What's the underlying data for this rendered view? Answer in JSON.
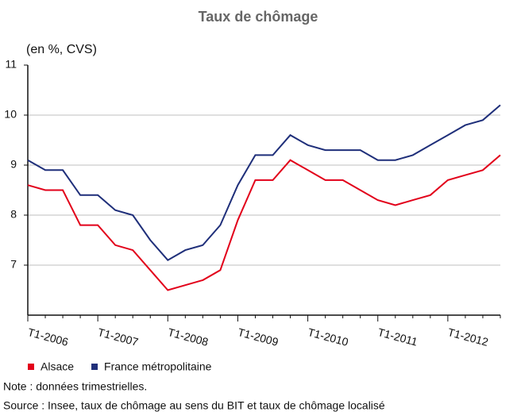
{
  "chart_data": {
    "type": "line",
    "title": "Taux de chômage",
    "y_label": "(en %, CVS)",
    "categories": [
      "T1-2006",
      null,
      null,
      null,
      "T1-2007",
      null,
      null,
      null,
      "T1-2008",
      null,
      null,
      null,
      "T1-2009",
      null,
      null,
      null,
      "T1-2010",
      null,
      null,
      null,
      "T1-2011",
      null,
      null,
      null,
      "T1-2012",
      null,
      null,
      null
    ],
    "series": [
      {
        "name": "Alsace",
        "color": "#e2001a",
        "values": [
          8.6,
          8.5,
          8.5,
          7.8,
          7.8,
          7.4,
          7.3,
          6.9,
          6.5,
          6.6,
          6.7,
          6.9,
          7.9,
          8.7,
          8.7,
          9.1,
          8.9,
          8.7,
          8.7,
          8.5,
          8.3,
          8.2,
          8.3,
          8.4,
          8.7,
          8.8,
          8.9,
          9.2
        ]
      },
      {
        "name": "France métropolitaine",
        "color": "#1f2f7a",
        "values": [
          9.1,
          8.9,
          8.9,
          8.4,
          8.4,
          8.1,
          8.0,
          7.5,
          7.1,
          7.3,
          7.4,
          7.8,
          8.6,
          9.2,
          9.2,
          9.6,
          9.4,
          9.3,
          9.3,
          9.3,
          9.1,
          9.1,
          9.2,
          9.4,
          9.6,
          9.8,
          9.9,
          10.2
        ]
      }
    ],
    "ylim": [
      6,
      11
    ],
    "yticks": [
      7,
      8,
      9,
      10,
      11
    ],
    "grid": true,
    "legend": "bottom",
    "note": "Note : données trimestrielles.",
    "source": "Source : Insee, taux de chômage au sens du BIT et taux de chômage localisé"
  }
}
